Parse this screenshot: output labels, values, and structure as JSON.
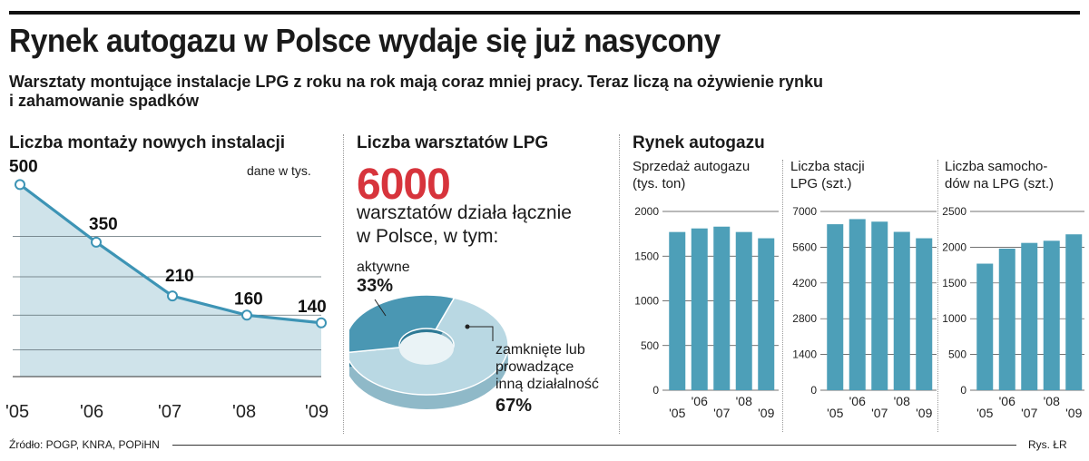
{
  "headline": "Rynek autogazu w Polsce wydaje się już nasycony",
  "subtitle_line1": "Warsztaty montujące instalacje LPG z roku na rok mają coraz mniej pracy. Teraz liczą na ożywienie rynku",
  "subtitle_line2": "i zahamowanie spadków",
  "colors": {
    "bar": "#4d9fb8",
    "line": "#3d94b5",
    "area": "#cfe3ea",
    "accent_red": "#d7343c",
    "pie_dark": "#4a97b3",
    "pie_light": "#b9d8e3"
  },
  "installations": {
    "title": "Liczba montaży nowych instalacji",
    "unit_note": "dane w tys."
  },
  "workshops": {
    "title": "Liczba warsztatów LPG",
    "big_number": "6000",
    "desc_line1": "warsztatów działa łącznie",
    "desc_line2": "w Polsce, w tym:",
    "active_label": "aktywne",
    "active_value": "33%",
    "closed_line1": "zamknięte lub",
    "closed_line2": "prowadzące",
    "closed_line3": "inną działalność",
    "closed_value": "67%"
  },
  "market": {
    "title": "Rynek autogazu",
    "sales_title_1": "Sprzedaż autogazu",
    "sales_title_2": "(tys. ton)",
    "stations_title_1": "Liczba stacji",
    "stations_title_2": "LPG (szt.)",
    "cars_title_1": "Liczba samocho-",
    "cars_title_2": "dów na LPG (szt.)"
  },
  "footer": {
    "source": "Źródło: POGP, KNRA, POPiHN",
    "credit": "Rys. ŁR"
  },
  "chart_data": [
    {
      "type": "area",
      "title": "Liczba montaży nowych instalacji",
      "unit": "dane w tys.",
      "categories": [
        "'05",
        "'06",
        "'07",
        "'08",
        "'09"
      ],
      "values": [
        500,
        350,
        210,
        160,
        140
      ],
      "data_labels": [
        "500",
        "350",
        "210",
        "160",
        "140"
      ],
      "ylim": [
        0,
        560
      ],
      "grid": true
    },
    {
      "type": "pie",
      "title": "Liczba warsztatów LPG",
      "total": 6000,
      "slices": [
        {
          "name": "aktywne",
          "value": 33
        },
        {
          "name": "zamknięte lub prowadzące inną działalność",
          "value": 67
        }
      ]
    },
    {
      "type": "bar",
      "title": "Sprzedaż autogazu (tys. ton)",
      "categories": [
        "'05",
        "'06",
        "'07",
        "'08",
        "'09"
      ],
      "values": [
        1770,
        1810,
        1830,
        1770,
        1700
      ],
      "yticks": [
        0,
        500,
        1000,
        1500,
        2000
      ],
      "ylim": [
        0,
        2000
      ]
    },
    {
      "type": "bar",
      "title": "Liczba stacji LPG (szt.)",
      "categories": [
        "'05",
        "'06",
        "'07",
        "'08",
        "'09"
      ],
      "values": [
        6500,
        6700,
        6600,
        6200,
        5950
      ],
      "yticks": [
        0,
        1400,
        2800,
        4200,
        5600,
        7000
      ],
      "ylim": [
        0,
        7000
      ]
    },
    {
      "type": "bar",
      "title": "Liczba samochodów na LPG (szt.)",
      "categories": [
        "'05",
        "'06",
        "'07",
        "'08",
        "'09"
      ],
      "values": [
        1770,
        1980,
        2060,
        2090,
        2180
      ],
      "yticks": [
        0,
        500,
        1000,
        1500,
        2000,
        2500
      ],
      "ylim": [
        0,
        2500
      ]
    }
  ]
}
